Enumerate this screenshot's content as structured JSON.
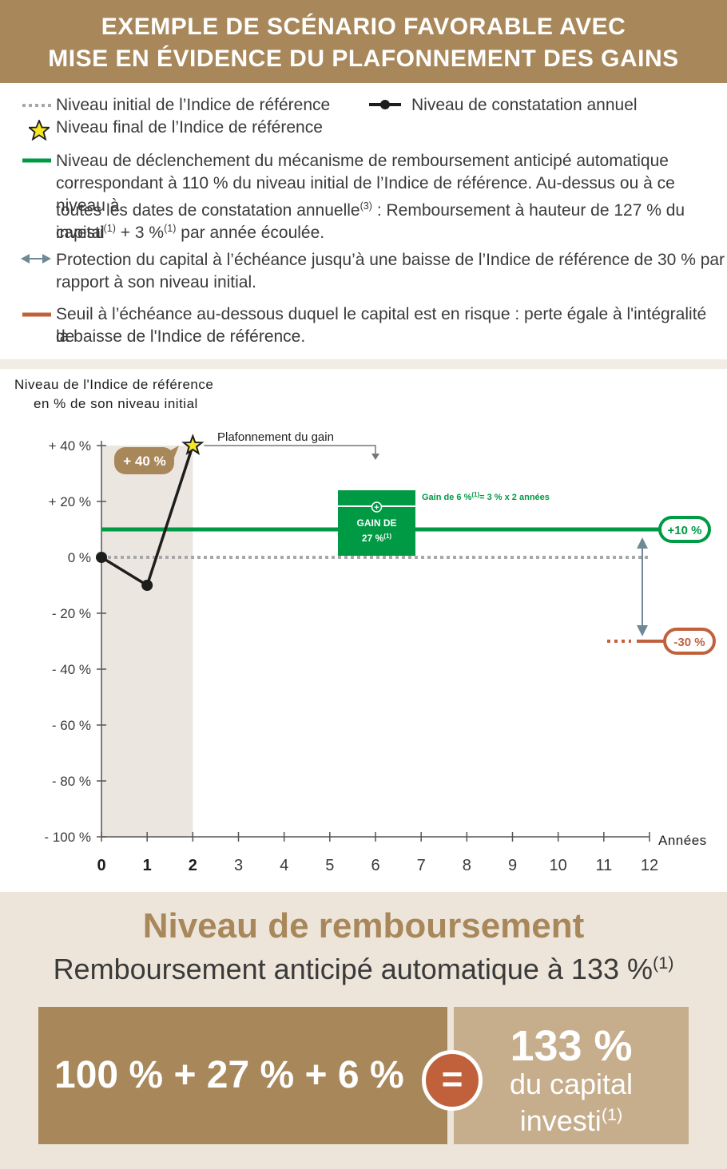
{
  "header": {
    "line1": "EXEMPLE DE SCÉNARIO FAVORABLE AVEC",
    "line2": "MISE EN ÉVIDENCE DU PLAFONNEMENT DES GAINS"
  },
  "legend": {
    "initial": "Niveau initial de l’Indice de référence",
    "annual": "Niveau de constatation annuel",
    "final": "Niveau final de l’Indice de référence",
    "trigger_a": "Niveau de déclenchement du mécanisme de remboursement anticipé automatique",
    "trigger_b": "correspondant à 110 % du niveau initial de l’Indice de référence. Au-dessus ou à ce niveau à",
    "trigger_c1": "toutes les dates de constatation annuelle",
    "trigger_c_sup": "(3)",
    "trigger_c2": " : Remboursement à hauteur de 127 % du capital",
    "trigger_d1": "investi",
    "trigger_d_sup1": "(1)",
    "trigger_d2": " + 3 %",
    "trigger_d_sup2": "(1)",
    "trigger_d3": " par année écoulée.",
    "protection_a": "Protection du capital à l’échéance jusqu’à une baisse de l’Indice de référence de 30 % par",
    "protection_b": "rapport à son niveau initial.",
    "risk_a": "Seuil à l’échéance au-dessous duquel le capital est en risque : perte égale à l'intégralité de",
    "risk_b": "la baisse de l'Indice de référence."
  },
  "colors": {
    "gold": "#a8875a",
    "green": "#009a44",
    "rust": "#c0613c",
    "grey_arrow": "#6f8a96",
    "dark": "#1d1d1b"
  },
  "chart_data": {
    "type": "line",
    "ylabel_line1": "Niveau de l'Indice de référence",
    "ylabel_line2": "en % de son niveau initial",
    "xlabel": "Années",
    "x_ticks": [
      "0",
      "1",
      "2",
      "3",
      "4",
      "5",
      "6",
      "7",
      "8",
      "9",
      "10",
      "11",
      "12"
    ],
    "y_ticks": [
      "+ 40 %",
      "+ 20 %",
      "0 %",
      "- 20 %",
      "- 40 %",
      "- 60 %",
      "- 80 %",
      "- 100 %"
    ],
    "ylim": [
      -100,
      40
    ],
    "xlim": [
      0,
      12
    ],
    "series": [
      {
        "x": [
          0,
          1,
          2
        ],
        "y": [
          0,
          -10,
          40
        ]
      }
    ],
    "final_point": {
      "x": 2,
      "y": 40
    },
    "reference_lines": {
      "initial": 0,
      "trigger": 10,
      "risk": -30
    },
    "shaded_years": [
      0,
      2
    ],
    "annotations": {
      "final_label": "+ 40 %",
      "cap_label": "Plafonnement du gain",
      "gain_box_line1": "GAIN DE",
      "gain_box_line2": "27 %",
      "gain_box_sup": "(1)",
      "gain_note_a": "Gain de 6 %",
      "gain_note_sup": "(1)",
      "gain_note_b": "= 3 % x 2 années",
      "trigger_badge": "+10 %",
      "risk_badge": "-30 %"
    }
  },
  "bottom": {
    "title": "Niveau de remboursement",
    "subtitle": "Remboursement anticipé automatique à 133 %",
    "subtitle_sup": "(1)",
    "formula": "100 % + 27 % + 6 %",
    "equals": "=",
    "result_big": "133 %",
    "result_line1": "du capital",
    "result_line2": "investi",
    "result_sup": "(1)"
  }
}
